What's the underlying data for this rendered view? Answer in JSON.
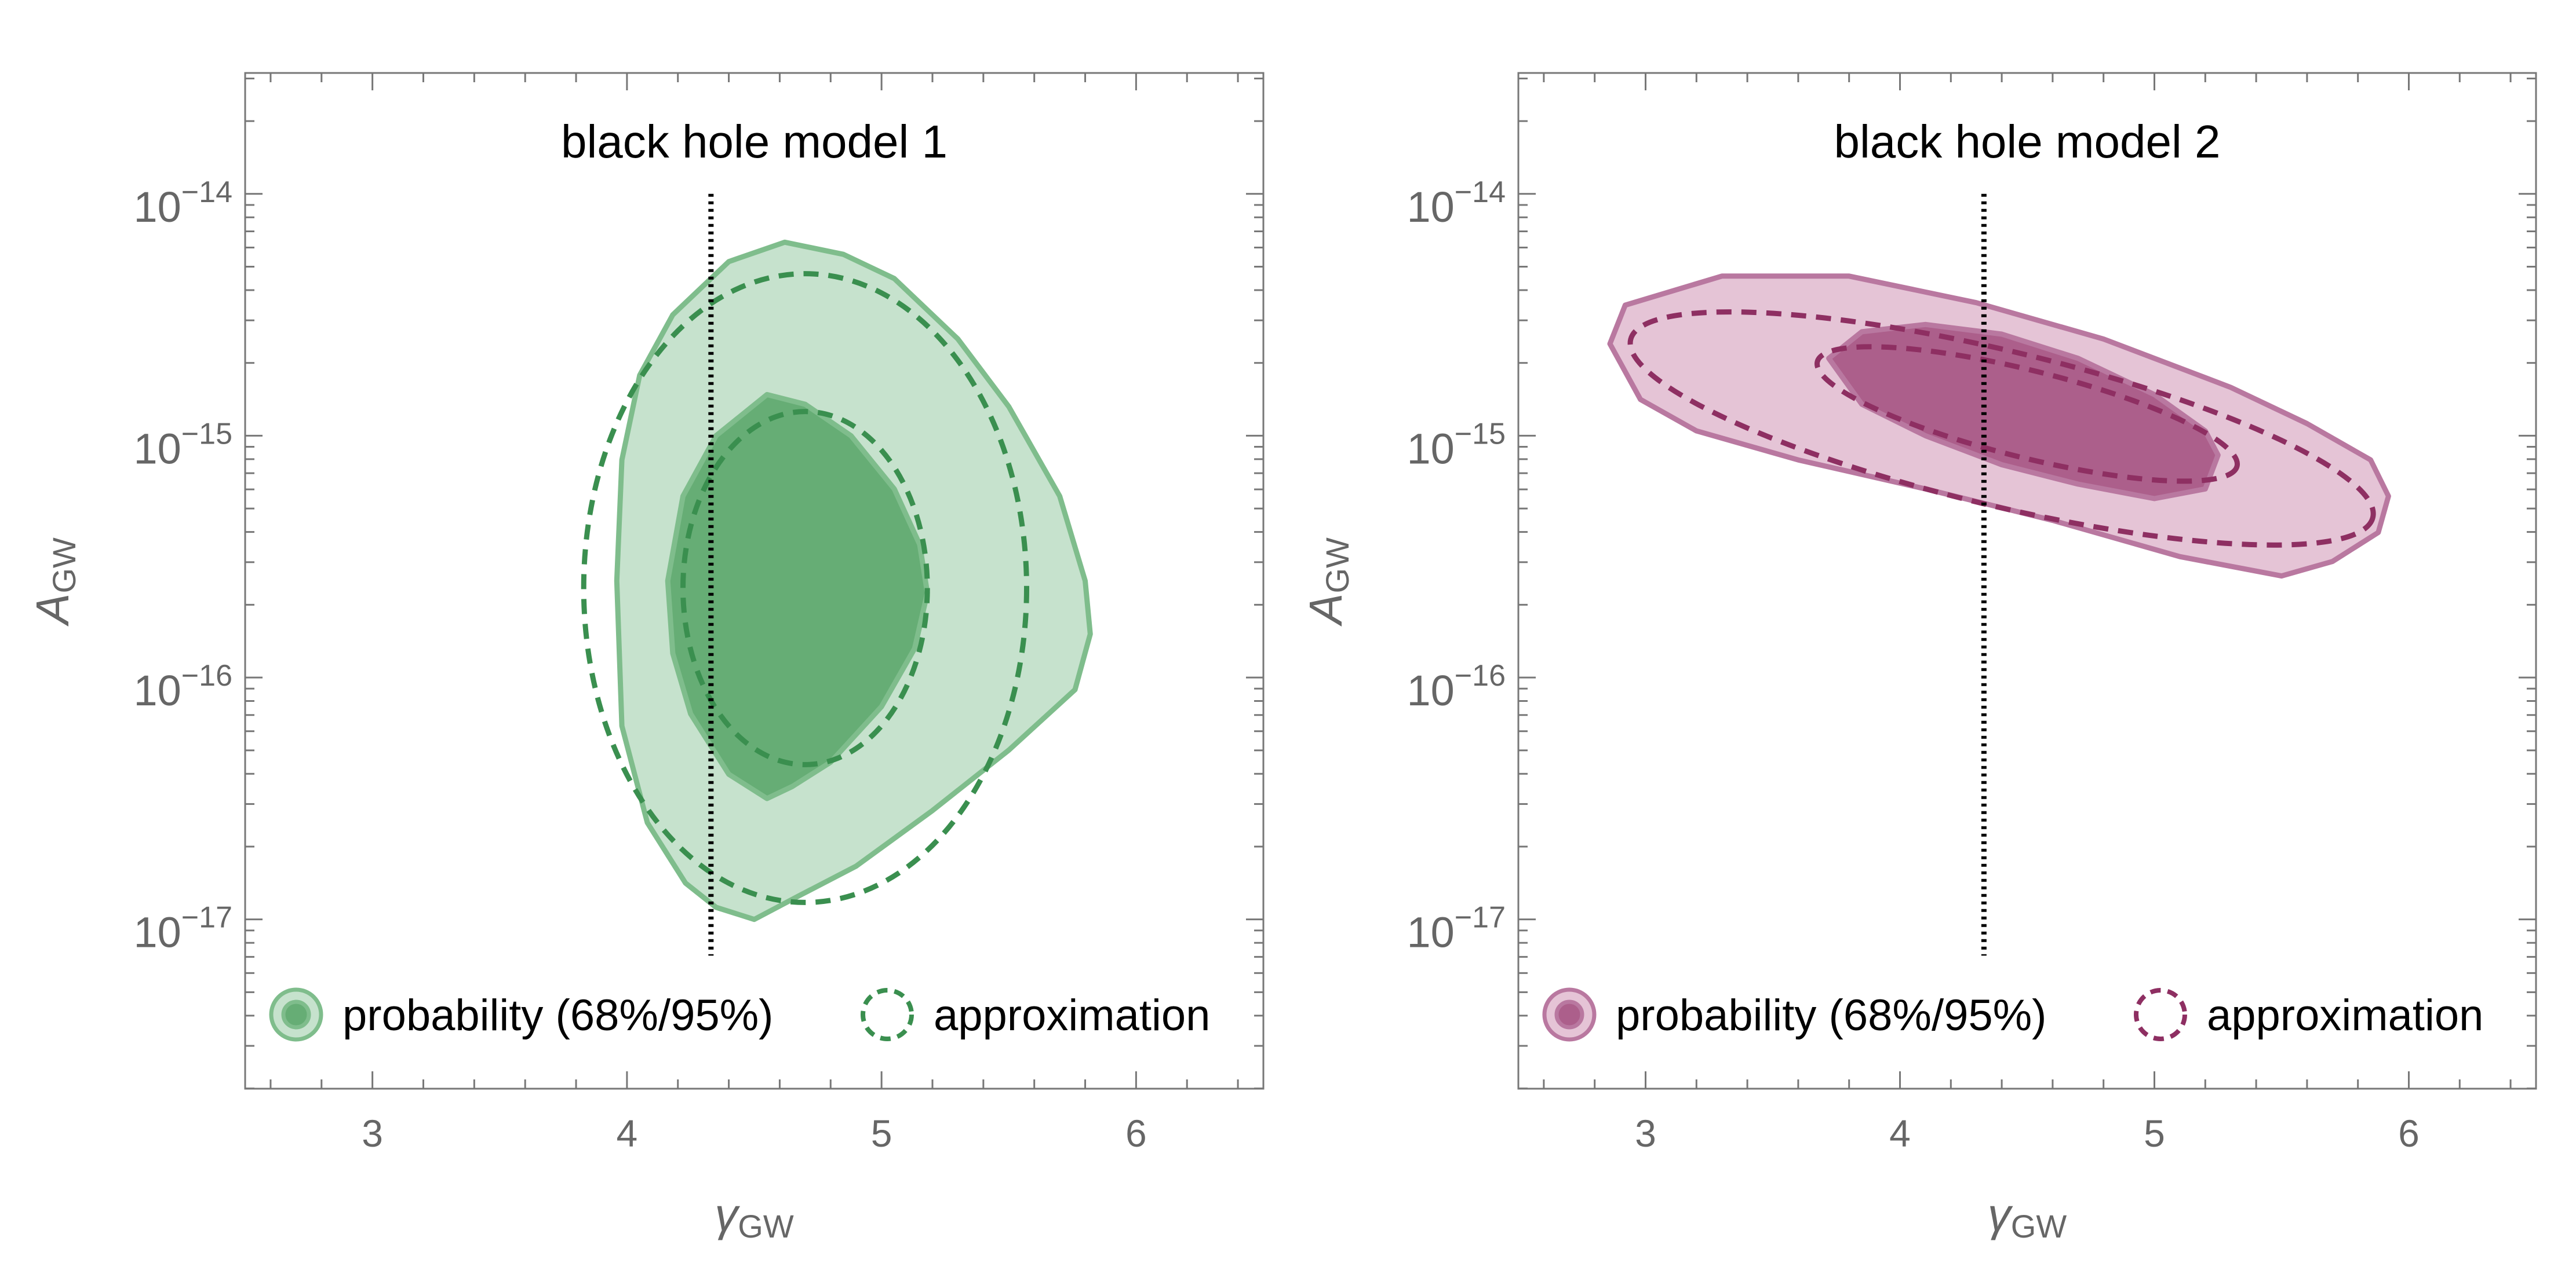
{
  "chart_data": [
    {
      "type": "contour",
      "title": "black hole model 1",
      "xlabel": "γ",
      "xlabel_sub": "GW",
      "ylabel": "A",
      "ylabel_sub": "GW",
      "xlim": [
        2.5,
        6.5
      ],
      "ylim_log10": [
        -17.7,
        -13.5
      ],
      "x_ticks": [
        {
          "value": 3,
          "label": "3"
        },
        {
          "value": 4,
          "label": "4"
        },
        {
          "value": 5,
          "label": "5"
        },
        {
          "value": 6,
          "label": "6"
        }
      ],
      "y_ticks": [
        {
          "value": -14,
          "label_base": "10",
          "label_exp": "−14"
        },
        {
          "value": -15,
          "label_base": "10",
          "label_exp": "−15"
        },
        {
          "value": -16,
          "label_base": "10",
          "label_exp": "−16"
        },
        {
          "value": -17,
          "label_base": "10",
          "label_exp": "−17"
        }
      ],
      "reference_line": {
        "x": 4.33,
        "y_from": -17.15,
        "y_to": -14.0
      },
      "colors": {
        "inner_fill": "#66ad75",
        "outer_fill": "#c6e2cd",
        "edge": "#7fbd8c",
        "dashed": "#3a8f4f"
      },
      "probability_95": [
        [
          4.5,
          -17.0
        ],
        [
          4.35,
          -16.95
        ],
        [
          4.23,
          -16.85
        ],
        [
          4.08,
          -16.6
        ],
        [
          3.98,
          -16.2
        ],
        [
          3.96,
          -15.6
        ],
        [
          3.98,
          -15.1
        ],
        [
          4.05,
          -14.75
        ],
        [
          4.18,
          -14.5
        ],
        [
          4.4,
          -14.28
        ],
        [
          4.62,
          -14.2
        ],
        [
          4.85,
          -14.25
        ],
        [
          5.05,
          -14.35
        ],
        [
          5.3,
          -14.6
        ],
        [
          5.5,
          -14.88
        ],
        [
          5.7,
          -15.25
        ],
        [
          5.8,
          -15.6
        ],
        [
          5.82,
          -15.82
        ],
        [
          5.76,
          -16.05
        ],
        [
          5.5,
          -16.3
        ],
        [
          5.2,
          -16.55
        ],
        [
          4.9,
          -16.78
        ],
        [
          4.68,
          -16.9
        ]
      ],
      "probability_68": [
        [
          4.55,
          -16.5
        ],
        [
          4.4,
          -16.4
        ],
        [
          4.25,
          -16.15
        ],
        [
          4.18,
          -15.9
        ],
        [
          4.16,
          -15.6
        ],
        [
          4.22,
          -15.25
        ],
        [
          4.35,
          -15.0
        ],
        [
          4.55,
          -14.83
        ],
        [
          4.7,
          -14.87
        ],
        [
          4.88,
          -15.0
        ],
        [
          5.05,
          -15.22
        ],
        [
          5.15,
          -15.45
        ],
        [
          5.18,
          -15.65
        ],
        [
          5.13,
          -15.88
        ],
        [
          5.0,
          -16.12
        ],
        [
          4.8,
          -16.35
        ],
        [
          4.65,
          -16.45
        ]
      ],
      "approximation_95": {
        "cx": 4.7,
        "cy": -15.63,
        "rx": 0.87,
        "ry": 1.3
      },
      "approximation_68": {
        "cx": 4.7,
        "cy": -15.63,
        "rx": 0.48,
        "ry": 0.73
      },
      "legend": {
        "probability_label": "probability (68%/95%)",
        "approximation_label": "approximation"
      }
    },
    {
      "type": "contour",
      "title": "black hole model 2",
      "xlabel": "γ",
      "xlabel_sub": "GW",
      "ylabel": "A",
      "ylabel_sub": "GW",
      "xlim": [
        2.5,
        6.5
      ],
      "ylim_log10": [
        -17.7,
        -13.5
      ],
      "x_ticks": [
        {
          "value": 3,
          "label": "3"
        },
        {
          "value": 4,
          "label": "4"
        },
        {
          "value": 5,
          "label": "5"
        },
        {
          "value": 6,
          "label": "6"
        }
      ],
      "y_ticks": [
        {
          "value": -14,
          "label_base": "10",
          "label_exp": "−14"
        },
        {
          "value": -15,
          "label_base": "10",
          "label_exp": "−15"
        },
        {
          "value": -16,
          "label_base": "10",
          "label_exp": "−16"
        },
        {
          "value": -17,
          "label_base": "10",
          "label_exp": "−17"
        }
      ],
      "reference_line": {
        "x": 4.33,
        "y_from": -17.15,
        "y_to": -14.0
      },
      "colors": {
        "inner_fill": "#ac5f8b",
        "outer_fill": "#e5c4d6",
        "edge": "#b978a0",
        "dashed": "#8e2f62"
      },
      "probability_95": [
        [
          2.86,
          -14.62
        ],
        [
          2.92,
          -14.46
        ],
        [
          3.3,
          -14.34
        ],
        [
          3.8,
          -14.34
        ],
        [
          4.3,
          -14.45
        ],
        [
          4.8,
          -14.6
        ],
        [
          5.3,
          -14.8
        ],
        [
          5.6,
          -14.95
        ],
        [
          5.85,
          -15.1
        ],
        [
          5.92,
          -15.25
        ],
        [
          5.88,
          -15.4
        ],
        [
          5.7,
          -15.52
        ],
        [
          5.5,
          -15.58
        ],
        [
          5.1,
          -15.5
        ],
        [
          4.6,
          -15.35
        ],
        [
          4.1,
          -15.22
        ],
        [
          3.6,
          -15.1
        ],
        [
          3.2,
          -14.98
        ],
        [
          2.98,
          -14.85
        ]
      ],
      "probability_68": [
        [
          3.72,
          -14.68
        ],
        [
          3.85,
          -14.57
        ],
        [
          4.1,
          -14.54
        ],
        [
          4.4,
          -14.58
        ],
        [
          4.7,
          -14.68
        ],
        [
          5.0,
          -14.83
        ],
        [
          5.2,
          -14.98
        ],
        [
          5.25,
          -15.08
        ],
        [
          5.2,
          -15.22
        ],
        [
          5.0,
          -15.26
        ],
        [
          4.7,
          -15.2
        ],
        [
          4.4,
          -15.12
        ],
        [
          4.1,
          -15.0
        ],
        [
          3.85,
          -14.87
        ]
      ],
      "approximation_95": {
        "cx": 4.4,
        "cy": -14.97,
        "rx": 1.5,
        "ry": 0.32,
        "rotate": 13.5
      },
      "approximation_68": {
        "cx": 4.5,
        "cy": -14.91,
        "rx": 0.85,
        "ry": 0.18,
        "rotate": 14
      },
      "legend": {
        "probability_label": "probability (68%/95%)",
        "approximation_label": "approximation"
      }
    }
  ]
}
